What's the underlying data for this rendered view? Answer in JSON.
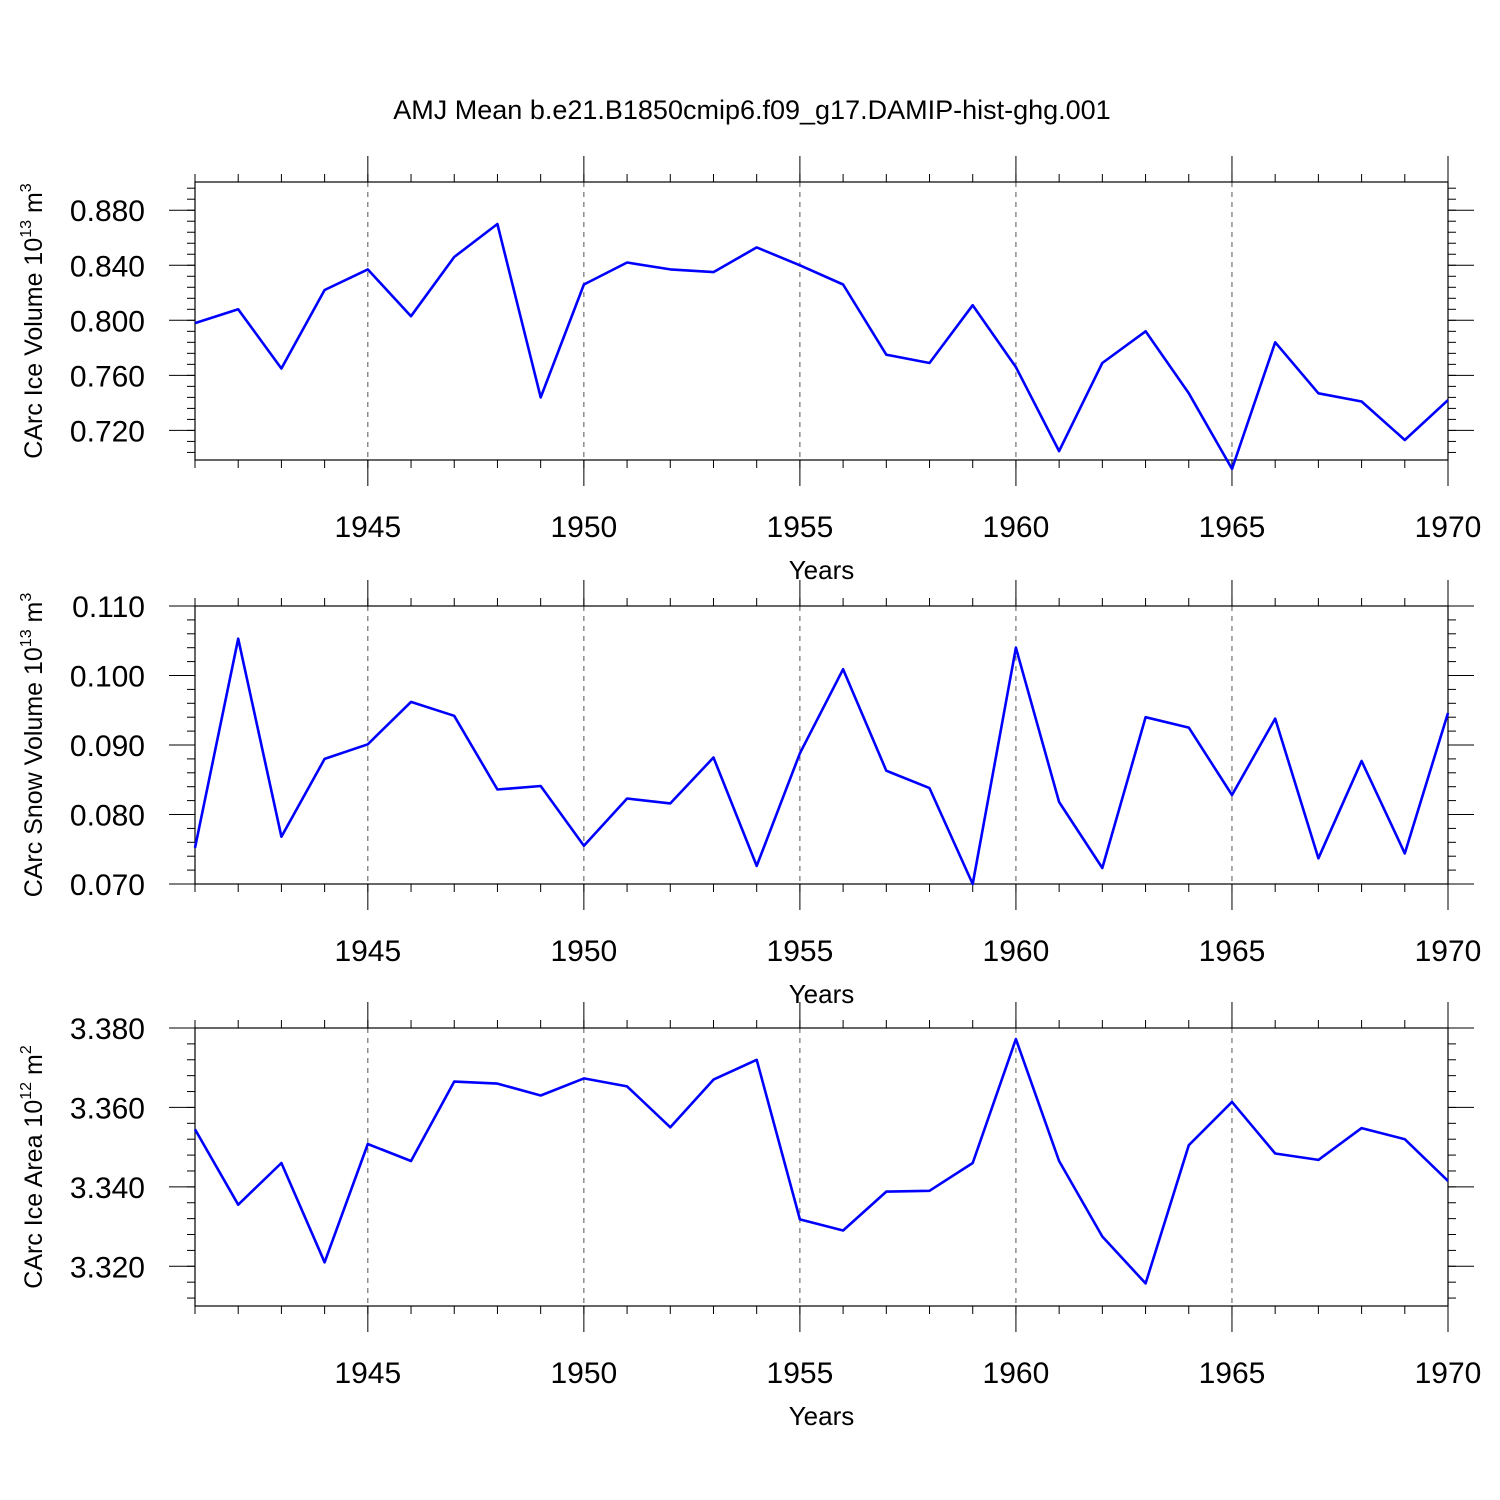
{
  "figure_title": "AMJ Mean b.e21.B1850cmip6.f09_g17.DAMIP-hist-ghg.001",
  "colors": {
    "series": "#0000ff",
    "axes": "#000000",
    "grid": "#555555"
  },
  "chart_data": [
    {
      "type": "line",
      "title": "AMJ Mean b.e21.B1850cmip6.f09_g17.DAMIP-hist-ghg.001",
      "xlabel": "Years",
      "ylabel": {
        "text": "CArc Ice Volume 10",
        "exp": "13",
        "unit": " m",
        "unit_exp": "3"
      },
      "xlim": [
        1941,
        1970
      ],
      "ylim": [
        0.6985,
        0.9005
      ],
      "xticks": [
        "1945",
        "1950",
        "1955",
        "1960",
        "1965",
        "1970"
      ],
      "yticks": [
        "0.720",
        "0.760",
        "0.800",
        "0.840",
        "0.880"
      ],
      "grid": "vertical dashed at major x ticks",
      "x": [
        1941,
        1942,
        1943,
        1944,
        1945,
        1946,
        1947,
        1948,
        1949,
        1950,
        1951,
        1952,
        1953,
        1954,
        1955,
        1956,
        1957,
        1958,
        1959,
        1960,
        1961,
        1962,
        1963,
        1964,
        1965,
        1966,
        1967,
        1968,
        1969,
        1970
      ],
      "series": [
        {
          "name": "CArc Ice Volume",
          "values": [
            0.798,
            0.808,
            0.765,
            0.822,
            0.837,
            0.803,
            0.846,
            0.87,
            0.744,
            0.826,
            0.842,
            0.837,
            0.835,
            0.853,
            0.84,
            0.826,
            0.775,
            0.769,
            0.811,
            0.766,
            0.705,
            0.769,
            0.792,
            0.747,
            0.692,
            0.784,
            0.747,
            0.741,
            0.713,
            0.742
          ]
        }
      ]
    },
    {
      "type": "line",
      "title": "",
      "xlabel": "Years",
      "ylabel": {
        "text": "CArc Snow Volume 10",
        "exp": "13",
        "unit": " m",
        "unit_exp": "3"
      },
      "xlim": [
        1941,
        1970
      ],
      "ylim": [
        0.07,
        0.11
      ],
      "xticks": [
        "1945",
        "1950",
        "1955",
        "1960",
        "1965",
        "1970"
      ],
      "yticks": [
        "0.070",
        "0.080",
        "0.090",
        "0.100",
        "0.110"
      ],
      "grid": "vertical dashed at major x ticks",
      "x": [
        1941,
        1942,
        1943,
        1944,
        1945,
        1946,
        1947,
        1948,
        1949,
        1950,
        1951,
        1952,
        1953,
        1954,
        1955,
        1956,
        1957,
        1958,
        1959,
        1960,
        1961,
        1962,
        1963,
        1964,
        1965,
        1966,
        1967,
        1968,
        1969,
        1970
      ],
      "series": [
        {
          "name": "CArc Snow Volume",
          "values": [
            0.0752,
            0.1053,
            0.0768,
            0.088,
            0.0901,
            0.0962,
            0.0942,
            0.0836,
            0.0841,
            0.0755,
            0.0823,
            0.0816,
            0.0882,
            0.0726,
            0.0888,
            0.1009,
            0.0863,
            0.0838,
            0.07,
            0.104,
            0.0818,
            0.0723,
            0.094,
            0.0925,
            0.0828,
            0.0938,
            0.0737,
            0.0877,
            0.0744,
            0.0946
          ]
        }
      ]
    },
    {
      "type": "line",
      "title": "",
      "xlabel": "Years",
      "ylabel": {
        "text": "CArc Ice Area 10",
        "exp": "12",
        "unit": " m",
        "unit_exp": "2"
      },
      "xlim": [
        1941,
        1970
      ],
      "ylim": [
        3.31,
        3.38
      ],
      "xticks": [
        "1945",
        "1950",
        "1955",
        "1960",
        "1965",
        "1970"
      ],
      "yticks": [
        "3.320",
        "3.340",
        "3.360",
        "3.380"
      ],
      "grid": "vertical dashed at major x ticks",
      "x": [
        1941,
        1942,
        1943,
        1944,
        1945,
        1946,
        1947,
        1948,
        1949,
        1950,
        1951,
        1952,
        1953,
        1954,
        1955,
        1956,
        1957,
        1958,
        1959,
        1960,
        1961,
        1962,
        1963,
        1964,
        1965,
        1966,
        1967,
        1968,
        1969,
        1970
      ],
      "series": [
        {
          "name": "CArc Ice Area",
          "values": [
            3.3545,
            3.3355,
            3.346,
            3.321,
            3.3508,
            3.3465,
            3.3665,
            3.366,
            3.363,
            3.3673,
            3.3653,
            3.355,
            3.367,
            3.372,
            3.3318,
            3.329,
            3.3388,
            3.339,
            3.346,
            3.3772,
            3.3465,
            3.3275,
            3.3157,
            3.3505,
            3.3614,
            3.3484,
            3.3468,
            3.3548,
            3.352,
            3.3415
          ]
        }
      ]
    }
  ]
}
